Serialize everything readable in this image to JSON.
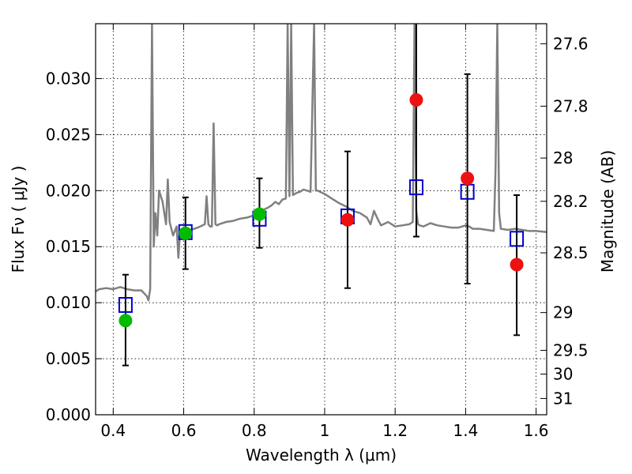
{
  "chart_data": {
    "type": "scatter",
    "xlabel": "Wavelength  λ (μm)",
    "ylabel": "Flux  Fν  ( μJy )",
    "y2label": "Magnitude (AB)",
    "xlim": [
      0.35,
      1.63
    ],
    "ylim": [
      0.0,
      0.0349
    ],
    "grid": true,
    "x_ticks": [
      0.4,
      0.6,
      0.8,
      1.0,
      1.2,
      1.4,
      1.6
    ],
    "x_tick_labels": [
      "0.4",
      "0.6",
      "0.8",
      "1",
      "1.2",
      "1.4",
      "1.6"
    ],
    "y_ticks": [
      0.0,
      0.005,
      0.01,
      0.015,
      0.02,
      0.025,
      0.03
    ],
    "y_tick_labels": [
      "0.000",
      "0.005",
      "0.010",
      "0.015",
      "0.020",
      "0.025",
      "0.030"
    ],
    "y2_ticks": [
      {
        "flux": 0.03311,
        "label": "27.6"
      },
      {
        "flux": 0.02754,
        "label": "27.8"
      },
      {
        "flux": 0.02291,
        "label": "28"
      },
      {
        "flux": 0.01905,
        "label": "28.2"
      },
      {
        "flux": 0.01445,
        "label": "28.5"
      },
      {
        "flux": 0.00912,
        "label": "29"
      },
      {
        "flux": 0.00575,
        "label": "29.5"
      },
      {
        "flux": 0.00363,
        "label": "30"
      },
      {
        "flux": 0.00145,
        "label": "31"
      }
    ],
    "model_spectrum": {
      "color": "#808080",
      "x": [
        0.35,
        0.36,
        0.38,
        0.4,
        0.42,
        0.44,
        0.46,
        0.48,
        0.495,
        0.5,
        0.505,
        0.51,
        0.515,
        0.52,
        0.525,
        0.53,
        0.54,
        0.55,
        0.555,
        0.56,
        0.57,
        0.58,
        0.585,
        0.59,
        0.6,
        0.62,
        0.64,
        0.66,
        0.665,
        0.67,
        0.675,
        0.68,
        0.685,
        0.69,
        0.695,
        0.7,
        0.72,
        0.74,
        0.76,
        0.78,
        0.8,
        0.82,
        0.84,
        0.85,
        0.86,
        0.87,
        0.88,
        0.89,
        0.895,
        0.9,
        0.905,
        0.91,
        0.92,
        0.93,
        0.94,
        0.95,
        0.96,
        0.97,
        0.975,
        0.98,
        1.0,
        1.02,
        1.04,
        1.06,
        1.08,
        1.1,
        1.12,
        1.13,
        1.14,
        1.15,
        1.16,
        1.18,
        1.2,
        1.22,
        1.24,
        1.25,
        1.255,
        1.26,
        1.265,
        1.27,
        1.28,
        1.3,
        1.32,
        1.34,
        1.36,
        1.38,
        1.4,
        1.41,
        1.42,
        1.44,
        1.46,
        1.48,
        1.485,
        1.49,
        1.495,
        1.5,
        1.52,
        1.54,
        1.56,
        1.58,
        1.6,
        1.63
      ],
      "y": [
        0.011,
        0.0112,
        0.0113,
        0.0112,
        0.0114,
        0.0112,
        0.0111,
        0.0111,
        0.0106,
        0.0102,
        0.0112,
        0.0349,
        0.015,
        0.018,
        0.016,
        0.02,
        0.019,
        0.017,
        0.021,
        0.0172,
        0.016,
        0.0168,
        0.014,
        0.0165,
        0.0162,
        0.0165,
        0.0167,
        0.017,
        0.0195,
        0.017,
        0.0168,
        0.0168,
        0.026,
        0.017,
        0.0169,
        0.017,
        0.0172,
        0.0173,
        0.0175,
        0.0176,
        0.0178,
        0.0182,
        0.0185,
        0.0187,
        0.019,
        0.0188,
        0.0192,
        0.0193,
        0.0349,
        0.0195,
        0.0349,
        0.0196,
        0.0198,
        0.0199,
        0.0201,
        0.02,
        0.0199,
        0.0349,
        0.02,
        0.02,
        0.0197,
        0.0193,
        0.0189,
        0.0186,
        0.0182,
        0.018,
        0.0176,
        0.017,
        0.0182,
        0.0175,
        0.0169,
        0.0172,
        0.0168,
        0.0169,
        0.017,
        0.0172,
        0.0349,
        0.0182,
        0.017,
        0.0169,
        0.0168,
        0.0171,
        0.0169,
        0.0168,
        0.0167,
        0.0167,
        0.0169,
        0.0168,
        0.0166,
        0.0166,
        0.0165,
        0.0164,
        0.022,
        0.0349,
        0.018,
        0.0166,
        0.0165,
        0.0166,
        0.0165,
        0.0164,
        0.0164,
        0.0163
      ]
    },
    "model_photometry": {
      "color": "#0000cc",
      "marker": "open-square",
      "x": [
        0.435,
        0.605,
        0.815,
        1.065,
        1.26,
        1.405,
        1.545
      ],
      "y": [
        0.0098,
        0.0163,
        0.0175,
        0.0177,
        0.0203,
        0.0199,
        0.0157
      ]
    },
    "observed_green": {
      "color": "#00bb00",
      "x": [
        0.435,
        0.605,
        0.815
      ],
      "y": [
        0.0084,
        0.0162,
        0.0179
      ],
      "yerr_low": [
        0.0044,
        0.013,
        0.0149
      ],
      "yerr_high": [
        0.0125,
        0.0194,
        0.0211
      ]
    },
    "observed_red": {
      "color": "#ee1111",
      "x": [
        1.065,
        1.26,
        1.405,
        1.545
      ],
      "y": [
        0.0174,
        0.0281,
        0.0211,
        0.0134
      ],
      "yerr_low": [
        0.0113,
        0.0159,
        0.0117,
        0.0071
      ],
      "yerr_high": [
        0.0235,
        0.0349,
        0.0304,
        0.0196
      ]
    }
  }
}
